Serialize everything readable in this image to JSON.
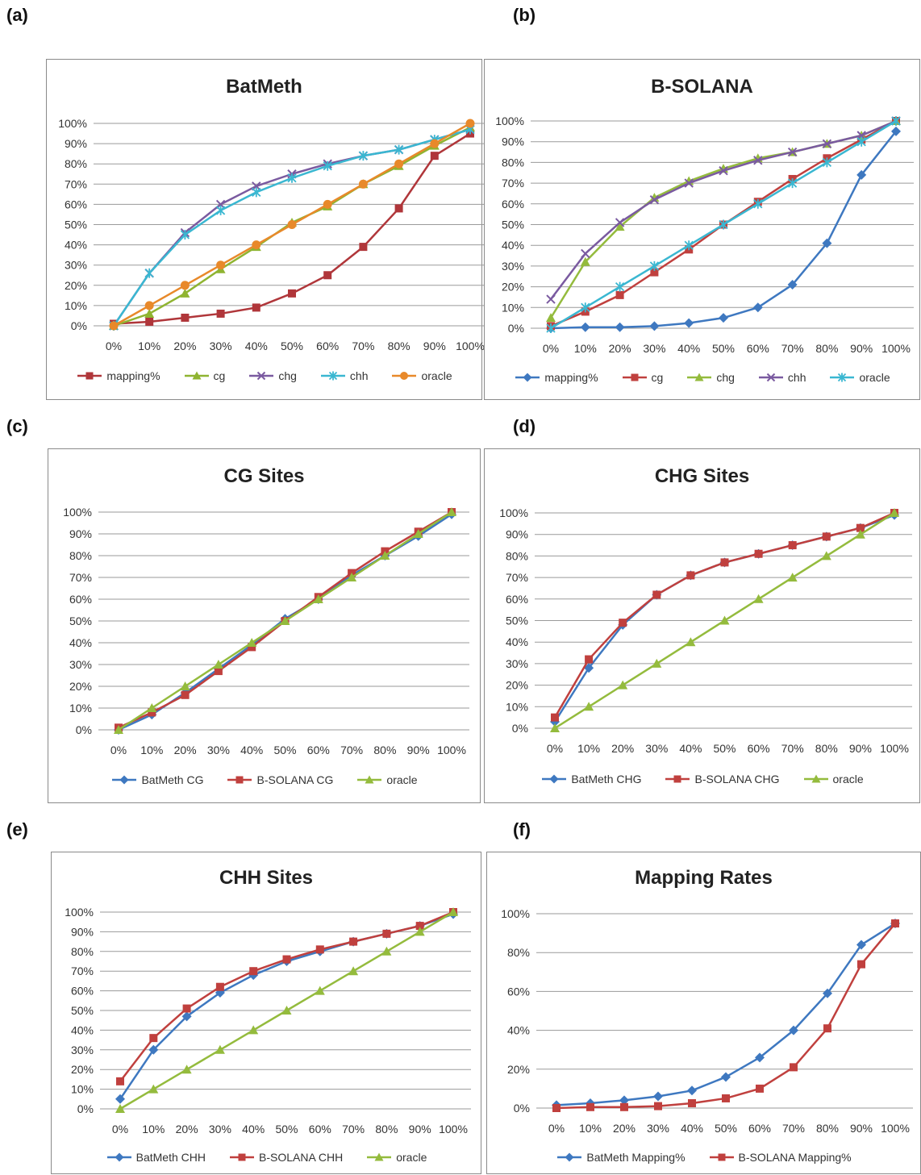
{
  "panel_labels": [
    "(a)",
    "(b)",
    "(c)",
    "(d)",
    "(e)",
    "(f)"
  ],
  "chart_data": [
    {
      "type": "line",
      "title": "BatMeth",
      "x": [
        "0%",
        "10%",
        "20%",
        "30%",
        "40%",
        "50%",
        "60%",
        "70%",
        "80%",
        "90%",
        "100%"
      ],
      "y_ticks": [
        "0%",
        "10%",
        "20%",
        "30%",
        "40%",
        "50%",
        "60%",
        "70%",
        "80%",
        "90%",
        "100%"
      ],
      "ylim": [
        0,
        100
      ],
      "legend_position": "bottom",
      "series": [
        {
          "name": "mapping%",
          "color": "#b0363a",
          "marker": "square",
          "values": [
            1,
            2,
            4,
            6,
            9,
            16,
            25,
            39,
            58,
            84,
            95
          ]
        },
        {
          "name": "cg",
          "color": "#8fb431",
          "marker": "triangle",
          "values": [
            0,
            6,
            16,
            28,
            39,
            51,
            59,
            70,
            79,
            89,
            98
          ]
        },
        {
          "name": "chg",
          "color": "#7a5aa0",
          "marker": "x",
          "values": [
            0,
            26,
            46,
            60,
            69,
            75,
            80,
            84,
            87,
            92,
            97
          ]
        },
        {
          "name": "chh",
          "color": "#3ab7d1",
          "marker": "star",
          "values": [
            0,
            26,
            45,
            57,
            66,
            73,
            79,
            84,
            87,
            92,
            97
          ]
        },
        {
          "name": "oracle",
          "color": "#e8892a",
          "marker": "circle",
          "values": [
            0,
            10,
            20,
            30,
            40,
            50,
            60,
            70,
            80,
            90,
            100
          ]
        }
      ]
    },
    {
      "type": "line",
      "title": "B-SOLANA",
      "x": [
        "0%",
        "10%",
        "20%",
        "30%",
        "40%",
        "50%",
        "60%",
        "70%",
        "80%",
        "90%",
        "100%"
      ],
      "y_ticks": [
        "0%",
        "10%",
        "20%",
        "30%",
        "40%",
        "50%",
        "60%",
        "70%",
        "80%",
        "90%",
        "100%"
      ],
      "ylim": [
        0,
        100
      ],
      "legend_position": "bottom",
      "series": [
        {
          "name": "mapping%",
          "color": "#3e78c0",
          "marker": "diamond",
          "values": [
            0,
            0.5,
            0.5,
            1,
            2.5,
            5,
            10,
            21,
            41,
            74,
            95
          ]
        },
        {
          "name": "cg",
          "color": "#c0403e",
          "marker": "square",
          "values": [
            1,
            8,
            16,
            27,
            38,
            50,
            61,
            72,
            82,
            91,
            100
          ]
        },
        {
          "name": "chg",
          "color": "#94bb3d",
          "marker": "triangle",
          "values": [
            5,
            32,
            49,
            63,
            71,
            77,
            82,
            85,
            89,
            93,
            100
          ]
        },
        {
          "name": "chh",
          "color": "#7a5aa0",
          "marker": "x",
          "values": [
            14,
            36,
            51,
            62,
            70,
            76,
            81,
            85,
            89,
            93,
            100
          ]
        },
        {
          "name": "oracle",
          "color": "#3ab7d1",
          "marker": "star",
          "values": [
            0,
            10,
            20,
            30,
            40,
            50,
            60,
            70,
            80,
            90,
            100
          ]
        }
      ]
    },
    {
      "type": "line",
      "title": "CG Sites",
      "x": [
        "0%",
        "10%",
        "20%",
        "30%",
        "40%",
        "50%",
        "60%",
        "70%",
        "80%",
        "90%",
        "100%"
      ],
      "y_ticks": [
        "0%",
        "10%",
        "20%",
        "30%",
        "40%",
        "50%",
        "60%",
        "70%",
        "80%",
        "90%",
        "100%"
      ],
      "ylim": [
        0,
        100
      ],
      "legend_position": "bottom",
      "series": [
        {
          "name": "BatMeth CG",
          "color": "#3e78c0",
          "marker": "diamond",
          "values": [
            0,
            7,
            17,
            28,
            39,
            51,
            60,
            71,
            80,
            89,
            99
          ]
        },
        {
          "name": "B-SOLANA CG",
          "color": "#c0403e",
          "marker": "square",
          "values": [
            1,
            8,
            16,
            27,
            38,
            50,
            61,
            72,
            82,
            91,
            100
          ]
        },
        {
          "name": "oracle",
          "color": "#94bb3d",
          "marker": "triangle",
          "values": [
            0,
            10,
            20,
            30,
            40,
            50,
            60,
            70,
            80,
            90,
            100
          ]
        }
      ]
    },
    {
      "type": "line",
      "title": "CHG Sites",
      "x": [
        "0%",
        "10%",
        "20%",
        "30%",
        "40%",
        "50%",
        "60%",
        "70%",
        "80%",
        "90%",
        "100%"
      ],
      "y_ticks": [
        "0%",
        "10%",
        "20%",
        "30%",
        "40%",
        "50%",
        "60%",
        "70%",
        "80%",
        "90%",
        "100%"
      ],
      "ylim": [
        0,
        100
      ],
      "legend_position": "bottom",
      "series": [
        {
          "name": "BatMeth CHG",
          "color": "#3e78c0",
          "marker": "diamond",
          "values": [
            3,
            28,
            48,
            62,
            71,
            77,
            81,
            85,
            89,
            93,
            99
          ]
        },
        {
          "name": "B-SOLANA CHG",
          "color": "#c0403e",
          "marker": "square",
          "values": [
            5,
            32,
            49,
            62,
            71,
            77,
            81,
            85,
            89,
            93,
            100
          ]
        },
        {
          "name": "oracle",
          "color": "#94bb3d",
          "marker": "triangle",
          "values": [
            0,
            10,
            20,
            30,
            40,
            50,
            60,
            70,
            80,
            90,
            100
          ]
        }
      ]
    },
    {
      "type": "line",
      "title": "CHH Sites",
      "x": [
        "0%",
        "10%",
        "20%",
        "30%",
        "40%",
        "50%",
        "60%",
        "70%",
        "80%",
        "90%",
        "100%"
      ],
      "y_ticks": [
        "0%",
        "10%",
        "20%",
        "30%",
        "40%",
        "50%",
        "60%",
        "70%",
        "80%",
        "90%",
        "100%"
      ],
      "ylim": [
        0,
        100
      ],
      "legend_position": "bottom",
      "series": [
        {
          "name": "BatMeth CHH",
          "color": "#3e78c0",
          "marker": "diamond",
          "values": [
            5,
            30,
            47,
            59,
            68,
            75,
            80,
            85,
            89,
            93,
            99
          ]
        },
        {
          "name": "B-SOLANA CHH",
          "color": "#c0403e",
          "marker": "square",
          "values": [
            14,
            36,
            51,
            62,
            70,
            76,
            81,
            85,
            89,
            93,
            100
          ]
        },
        {
          "name": "oracle",
          "color": "#94bb3d",
          "marker": "triangle",
          "values": [
            0,
            10,
            20,
            30,
            40,
            50,
            60,
            70,
            80,
            90,
            100
          ]
        }
      ]
    },
    {
      "type": "line",
      "title": "Mapping Rates",
      "x": [
        "0%",
        "10%",
        "20%",
        "30%",
        "40%",
        "50%",
        "60%",
        "70%",
        "80%",
        "90%",
        "100%"
      ],
      "y_ticks": [
        "0%",
        "20%",
        "40%",
        "60%",
        "80%",
        "100%"
      ],
      "ylim": [
        0,
        100
      ],
      "legend_position": "bottom",
      "series": [
        {
          "name": "BatMeth Mapping%",
          "color": "#3e78c0",
          "marker": "diamond",
          "values": [
            1.5,
            2.5,
            4,
            6,
            9,
            16,
            26,
            40,
            59,
            84,
            95
          ]
        },
        {
          "name": "B-SOLANA Mapping%",
          "color": "#c0403e",
          "marker": "square",
          "values": [
            0,
            0.5,
            0.5,
            1,
            2.5,
            5,
            10,
            21,
            41,
            74,
            95
          ]
        }
      ]
    }
  ]
}
